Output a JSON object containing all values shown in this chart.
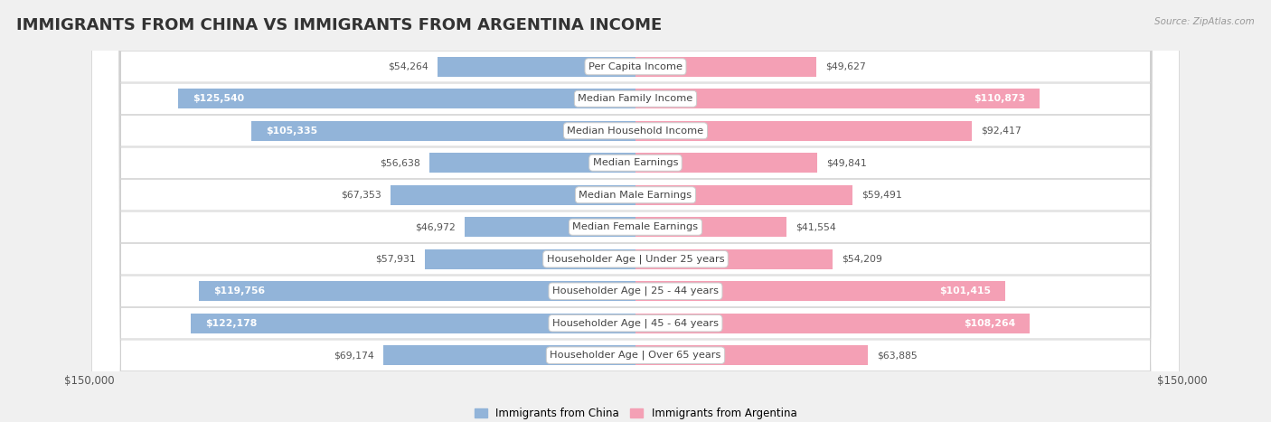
{
  "title": "IMMIGRANTS FROM CHINA VS IMMIGRANTS FROM ARGENTINA INCOME",
  "source": "Source: ZipAtlas.com",
  "categories": [
    "Per Capita Income",
    "Median Family Income",
    "Median Household Income",
    "Median Earnings",
    "Median Male Earnings",
    "Median Female Earnings",
    "Householder Age | Under 25 years",
    "Householder Age | 25 - 44 years",
    "Householder Age | 45 - 64 years",
    "Householder Age | Over 65 years"
  ],
  "china_values": [
    54264,
    125540,
    105335,
    56638,
    67353,
    46972,
    57931,
    119756,
    122178,
    69174
  ],
  "argentina_values": [
    49627,
    110873,
    92417,
    49841,
    59491,
    41554,
    54209,
    101415,
    108264,
    63885
  ],
  "china_color": "#92b4d9",
  "argentina_color": "#f4a0b5",
  "max_value": 150000,
  "china_label": "Immigrants from China",
  "argentina_label": "Immigrants from Argentina",
  "background_color": "#f0f0f0",
  "title_fontsize": 13,
  "label_fontsize": 8.2,
  "value_fontsize": 7.8,
  "bar_height": 0.62
}
